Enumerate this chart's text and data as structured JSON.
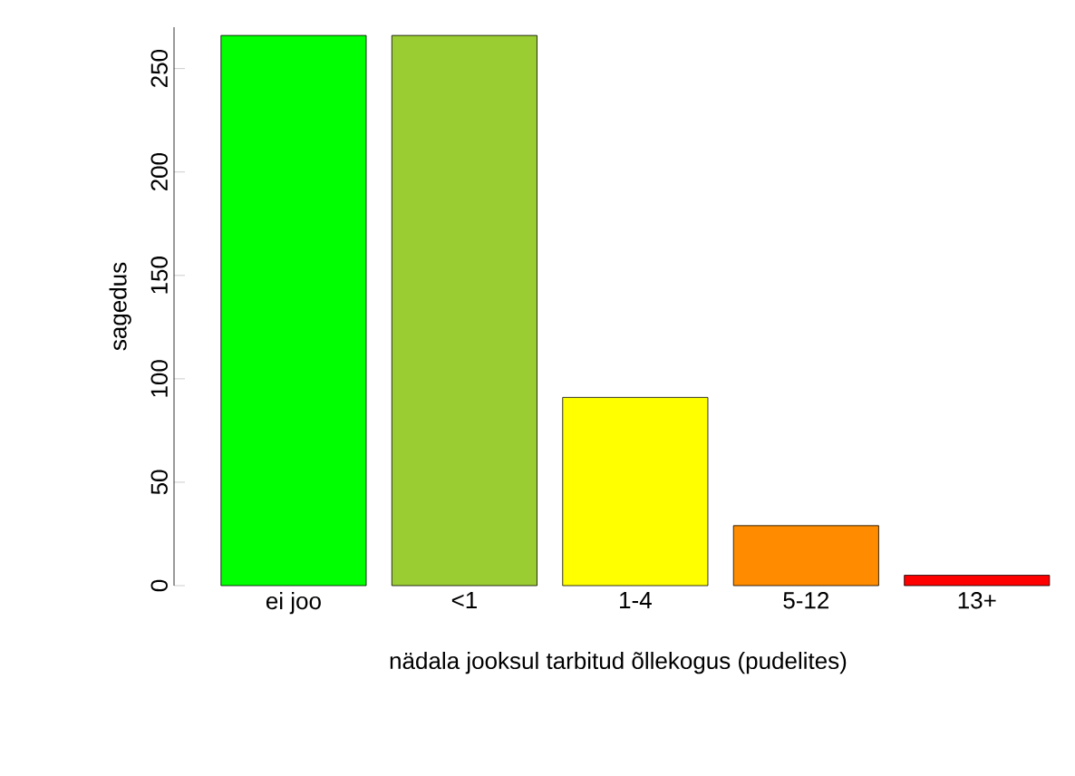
{
  "chart_data": {
    "type": "bar",
    "xlabel": "nädala jooksul tarbitud õllekogus (pudelites)",
    "ylabel": "sagedus",
    "categories": [
      "ei joo",
      "<1",
      "1-4",
      "5-12",
      "13+"
    ],
    "values": [
      266,
      266,
      91,
      29,
      5
    ],
    "colors": [
      "#00ff00",
      "#9acd32",
      "#ffff00",
      "#ff8c00",
      "#ff0000"
    ],
    "ylim": [
      0,
      270
    ],
    "yticks": [
      0,
      50,
      100,
      150,
      200,
      250
    ],
    "grid": false
  }
}
